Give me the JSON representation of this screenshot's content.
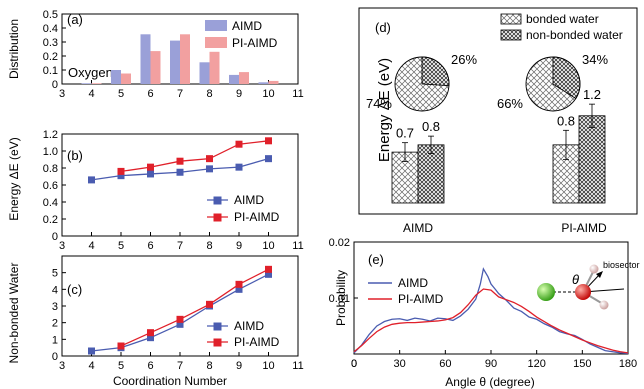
{
  "colors": {
    "aimd": "#4a5cb0",
    "piaimd": "#e0202a",
    "aimd_bar": "#9aa0d8",
    "piaimd_bar": "#f2a0a0"
  },
  "chart_data": [
    {
      "panel": "(a)",
      "type": "bar",
      "annotation": "Oxygen",
      "ylabel": "Distribution",
      "xlim": [
        3,
        11
      ],
      "ylim": [
        0,
        0.5
      ],
      "xticks": [
        "3",
        "4",
        "5",
        "6",
        "7",
        "8",
        "9",
        "10",
        "11"
      ],
      "yticks": [
        "0",
        "0.1",
        "0.2",
        "0.3",
        "0.4",
        "0.5"
      ],
      "categories": [
        4,
        5,
        6,
        7,
        8,
        9,
        10
      ],
      "series": [
        {
          "name": "AIMD",
          "values": [
            0.005,
            0.1,
            0.355,
            0.31,
            0.155,
            0.065,
            0.012
          ]
        },
        {
          "name": "PI-AIMD",
          "values": [
            0.005,
            0.075,
            0.235,
            0.355,
            0.23,
            0.085,
            0.022
          ]
        }
      ],
      "legend": "top-right"
    },
    {
      "panel": "(b)",
      "type": "line",
      "ylabel": "Energy ΔE (eV)",
      "xlim": [
        3,
        11
      ],
      "ylim": [
        0,
        1.2
      ],
      "xticks": [
        "3",
        "4",
        "5",
        "6",
        "7",
        "8",
        "9",
        "10",
        "11"
      ],
      "yticks": [
        "0",
        "0.2",
        "0.4",
        "0.6",
        "0.8",
        "1.0",
        "1.2"
      ],
      "series": [
        {
          "name": "AIMD",
          "x": [
            4,
            5,
            6,
            7,
            8,
            9,
            10
          ],
          "y": [
            0.66,
            0.71,
            0.73,
            0.75,
            0.79,
            0.81,
            0.91
          ]
        },
        {
          "name": "PI-AIMD",
          "x": [
            5,
            6,
            7,
            8,
            9,
            10
          ],
          "y": [
            0.76,
            0.81,
            0.88,
            0.91,
            1.08,
            1.12
          ]
        }
      ],
      "legend": "bottom-right"
    },
    {
      "panel": "(c)",
      "type": "line",
      "ylabel": "Non-bonded Water",
      "xlabel": "Coordination Number",
      "xlim": [
        3,
        11
      ],
      "ylim": [
        0,
        6
      ],
      "xticks": [
        "3",
        "4",
        "5",
        "6",
        "7",
        "8",
        "9",
        "10",
        "11"
      ],
      "yticks": [
        "0",
        "1",
        "2",
        "3",
        "4",
        "5"
      ],
      "series": [
        {
          "name": "AIMD",
          "x": [
            4,
            5,
            6,
            7,
            8,
            9,
            10
          ],
          "y": [
            0.3,
            0.5,
            1.1,
            1.9,
            3.0,
            4.0,
            4.9
          ]
        },
        {
          "name": "PI-AIMD",
          "x": [
            5,
            6,
            7,
            8,
            9,
            10
          ],
          "y": [
            0.6,
            1.4,
            2.2,
            3.1,
            4.3,
            5.2
          ]
        }
      ],
      "legend": "bottom-right"
    },
    {
      "panel": "(d)",
      "type": "bar",
      "ylabel": "Energy ΔE (eV)",
      "ylim": [
        0,
        2.6
      ],
      "categories": [
        "AIMD",
        "PI-AIMD"
      ],
      "series": [
        {
          "name": "bonded water",
          "values": [
            0.7,
            0.8
          ],
          "labels": [
            "0.7",
            "0.8"
          ],
          "error": [
            0.13,
            0.2
          ]
        },
        {
          "name": "non-bonded water",
          "values": [
            0.8,
            1.2
          ],
          "labels": [
            "0.8",
            "1.2"
          ],
          "error": [
            0.12,
            0.16
          ]
        }
      ],
      "legend": "top-right",
      "pies": [
        {
          "category": "AIMD",
          "slices": [
            {
              "value": 74,
              "label": "74%"
            },
            {
              "value": 26,
              "label": "26%"
            }
          ]
        },
        {
          "category": "PI-AIMD",
          "slices": [
            {
              "value": 66,
              "label": "66%"
            },
            {
              "value": 34,
              "label": "34%"
            }
          ]
        }
      ]
    },
    {
      "panel": "(e)",
      "type": "line",
      "ylabel": "Probability",
      "xlabel": "Angle θ (degree)",
      "xlim": [
        0,
        180
      ],
      "ylim": [
        0,
        0.02
      ],
      "xticks": [
        "0",
        "30",
        "60",
        "90",
        "120",
        "150",
        "180"
      ],
      "yticks": [
        "0.01",
        "0.02"
      ],
      "inset": {
        "theta_label": "θ",
        "arrow_label": "biosector"
      },
      "series": [
        {
          "name": "AIMD",
          "x": [
            0,
            5,
            10,
            15,
            20,
            25,
            30,
            35,
            40,
            45,
            50,
            55,
            60,
            65,
            70,
            75,
            80,
            83,
            85,
            88,
            90,
            93,
            95,
            100,
            105,
            110,
            115,
            120,
            125,
            130,
            135,
            140,
            145,
            150,
            155,
            160,
            165,
            170,
            175,
            180
          ],
          "y": [
            0.0002,
            0.0016,
            0.0035,
            0.005,
            0.0058,
            0.0062,
            0.0063,
            0.006,
            0.0064,
            0.0062,
            0.0059,
            0.0064,
            0.0063,
            0.006,
            0.0068,
            0.008,
            0.0098,
            0.0125,
            0.0152,
            0.0138,
            0.0125,
            0.0115,
            0.0108,
            0.0096,
            0.0082,
            0.0076,
            0.0066,
            0.0062,
            0.0054,
            0.0048,
            0.004,
            0.0036,
            0.0033,
            0.0026,
            0.0018,
            0.0012,
            0.0006,
            0.0004,
            0.0002,
            0.0001
          ]
        },
        {
          "name": "PI-AIMD",
          "x": [
            0,
            5,
            10,
            15,
            20,
            25,
            30,
            35,
            40,
            45,
            50,
            55,
            60,
            65,
            70,
            75,
            80,
            85,
            90,
            95,
            100,
            105,
            110,
            115,
            120,
            125,
            130,
            135,
            140,
            145,
            150,
            155,
            160,
            165,
            170,
            175,
            180
          ],
          "y": [
            0.0004,
            0.0015,
            0.0028,
            0.004,
            0.0048,
            0.0053,
            0.0055,
            0.0056,
            0.0056,
            0.0057,
            0.0058,
            0.0059,
            0.0061,
            0.0065,
            0.0074,
            0.0088,
            0.0105,
            0.0116,
            0.0114,
            0.0102,
            0.0097,
            0.0092,
            0.0085,
            0.0076,
            0.0066,
            0.0058,
            0.005,
            0.0043,
            0.0037,
            0.0031,
            0.0025,
            0.002,
            0.0015,
            0.0011,
            0.0007,
            0.0004,
            0.0002
          ]
        }
      ],
      "legend": "top-left"
    }
  ]
}
